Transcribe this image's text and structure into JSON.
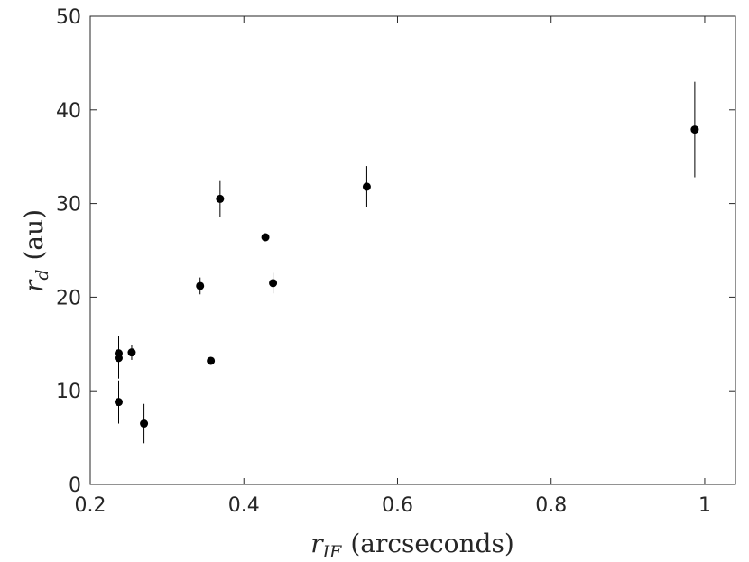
{
  "chart_data": {
    "type": "scatter",
    "title": "",
    "xlabel_var": "r",
    "xlabel_sub": "IF",
    "xlabel_unit": "(arcseconds)",
    "ylabel_var": "r",
    "ylabel_sub": "d",
    "ylabel_unit": "(au)",
    "xscale": "linear",
    "xlim": [
      0.2,
      1.04
    ],
    "ylim": [
      0,
      50
    ],
    "xticks": [
      0.2,
      0.4,
      0.6,
      0.8,
      1.0
    ],
    "xtick_labels": [
      "0.2",
      "0.4",
      "0.6",
      "0.8",
      "1"
    ],
    "yticks": [
      0,
      10,
      20,
      30,
      40,
      50
    ],
    "ytick_labels": [
      "0",
      "10",
      "20",
      "30",
      "40",
      "50"
    ],
    "grid": false,
    "legend": "none",
    "marker_color": "#000000",
    "points": [
      {
        "x": 0.237,
        "y": 8.8,
        "yerr_low": 2.3,
        "yerr_high": 2.3
      },
      {
        "x": 0.237,
        "y": 13.5,
        "yerr_low": 2.2,
        "yerr_high": 2.2
      },
      {
        "x": 0.237,
        "y": 14.0,
        "yerr_low": 1.8,
        "yerr_high": 1.8
      },
      {
        "x": 0.254,
        "y": 14.1,
        "yerr_low": 0.8,
        "yerr_high": 0.8
      },
      {
        "x": 0.27,
        "y": 6.5,
        "yerr_low": 2.1,
        "yerr_high": 2.1
      },
      {
        "x": 0.343,
        "y": 21.2,
        "yerr_low": 0.9,
        "yerr_high": 0.9
      },
      {
        "x": 0.357,
        "y": 13.2,
        "yerr_low": 0.0,
        "yerr_high": 0.0
      },
      {
        "x": 0.369,
        "y": 30.5,
        "yerr_low": 1.9,
        "yerr_high": 1.9
      },
      {
        "x": 0.428,
        "y": 26.4,
        "yerr_low": 0.0,
        "yerr_high": 0.0
      },
      {
        "x": 0.438,
        "y": 21.5,
        "yerr_low": 1.1,
        "yerr_high": 1.1
      },
      {
        "x": 0.56,
        "y": 31.8,
        "yerr_low": 2.2,
        "yerr_high": 2.2
      },
      {
        "x": 0.987,
        "y": 37.9,
        "yerr_low": 5.1,
        "yerr_high": 5.1
      }
    ]
  }
}
